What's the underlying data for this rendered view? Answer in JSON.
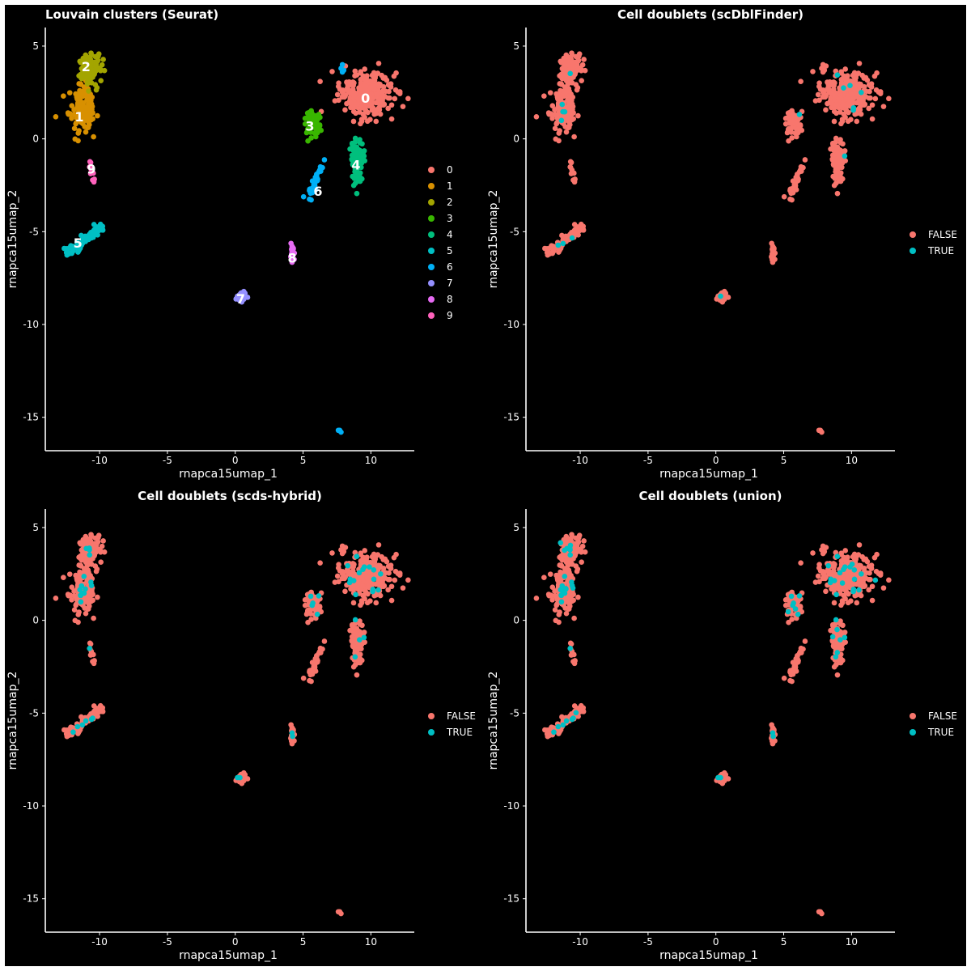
{
  "colors": {
    "background": "#000000",
    "foreground": "#ffffff",
    "cluster_palette": [
      "#F8766D",
      "#D89000",
      "#A3A500",
      "#39B600",
      "#00BF7D",
      "#00BFC4",
      "#00B0F6",
      "#9590FF",
      "#E76BF3",
      "#FF62BC"
    ],
    "false": "#F8766D",
    "true": "#00BFC4"
  },
  "chart_data": [
    {
      "type": "scatter",
      "title": "Louvain clusters (Seurat)",
      "xlabel": "rnapca15umap_1",
      "ylabel": "rnapca15umap_2",
      "xlim": [
        -14,
        13.2
      ],
      "ylim": [
        -16.8,
        6.0
      ],
      "xticks": [
        -10,
        -5,
        0,
        5,
        10
      ],
      "yticks": [
        5,
        0,
        -5,
        -10,
        -15
      ],
      "grid": false,
      "legend_position": "right",
      "legend": [
        "0",
        "1",
        "2",
        "3",
        "4",
        "5",
        "6",
        "7",
        "8",
        "9"
      ],
      "color_by": "cluster",
      "cluster_labels": [
        {
          "text": "0",
          "x": 9.6,
          "y": 2.2
        },
        {
          "text": "1",
          "x": -11.5,
          "y": 1.2
        },
        {
          "text": "2",
          "x": -11.0,
          "y": 3.9
        },
        {
          "text": "3",
          "x": 5.5,
          "y": 0.7
        },
        {
          "text": "4",
          "x": 8.9,
          "y": -1.4
        },
        {
          "text": "5",
          "x": -11.6,
          "y": -5.6
        },
        {
          "text": "6",
          "x": 6.1,
          "y": -2.8
        },
        {
          "text": "7",
          "x": 0.4,
          "y": -8.6
        },
        {
          "text": "8",
          "x": 4.2,
          "y": -6.4
        },
        {
          "text": "9",
          "x": -10.6,
          "y": -1.6
        }
      ]
    },
    {
      "type": "scatter",
      "title": "Cell doublets (scDblFinder)",
      "xlabel": "rnapca15umap_1",
      "ylabel": "rnapca15umap_2",
      "xlim": [
        -14,
        13.2
      ],
      "ylim": [
        -16.8,
        6.0
      ],
      "xticks": [
        -10,
        -5,
        0,
        5,
        10
      ],
      "yticks": [
        5,
        0,
        -5,
        -10,
        -15
      ],
      "grid": false,
      "legend_position": "right",
      "legend": [
        "FALSE",
        "TRUE"
      ],
      "color_by": "doublet",
      "doublet_fraction": 0.02
    },
    {
      "type": "scatter",
      "title": "Cell doublets (scds-hybrid)",
      "xlabel": "rnapca15umap_1",
      "ylabel": "rnapca15umap_2",
      "xlim": [
        -14,
        13.2
      ],
      "ylim": [
        -16.8,
        6.0
      ],
      "xticks": [
        -10,
        -5,
        0,
        5,
        10
      ],
      "yticks": [
        5,
        0,
        -5,
        -10,
        -15
      ],
      "grid": false,
      "legend_position": "right",
      "legend": [
        "FALSE",
        "TRUE"
      ],
      "color_by": "doublet",
      "doublet_fraction": 0.05
    },
    {
      "type": "scatter",
      "title": "Cell doublets (union)",
      "xlabel": "rnapca15umap_1",
      "ylabel": "rnapca15umap_2",
      "xlim": [
        -14,
        13.2
      ],
      "ylim": [
        -16.8,
        6.0
      ],
      "xticks": [
        -10,
        -5,
        0,
        5,
        10
      ],
      "yticks": [
        5,
        0,
        -5,
        -10,
        -15
      ],
      "grid": false,
      "legend_position": "right",
      "legend": [
        "FALSE",
        "TRUE"
      ],
      "color_by": "doublet",
      "doublet_fraction": 0.06
    }
  ],
  "clusters": [
    {
      "id": "0",
      "shape": "blob",
      "center": [
        9.6,
        2.4
      ],
      "spread": [
        1.6,
        1.0
      ],
      "n": 300
    },
    {
      "id": "1",
      "shape": "blob",
      "center": [
        -11.3,
        1.7
      ],
      "spread": [
        0.8,
        1.0
      ],
      "n": 150
    },
    {
      "id": "2",
      "shape": "blob",
      "center": [
        -10.8,
        3.8
      ],
      "spread": [
        0.7,
        0.7
      ],
      "n": 120
    },
    {
      "id": "3",
      "shape": "blob",
      "center": [
        5.7,
        0.9
      ],
      "spread": [
        0.5,
        0.5
      ],
      "n": 80
    },
    {
      "id": "4",
      "shape": "blob",
      "center": [
        9.0,
        -1.2
      ],
      "spread": [
        0.4,
        0.9
      ],
      "n": 100
    },
    {
      "id": "5",
      "shape": "line",
      "from": [
        -12.4,
        -6.2
      ],
      "to": [
        -9.8,
        -4.7
      ],
      "n": 90
    },
    {
      "id": "6",
      "shape": "line",
      "from": [
        5.4,
        -3.3
      ],
      "to": [
        6.5,
        -1.2
      ],
      "n": 30,
      "extra": [
        [
          7.9,
          4.0
        ],
        [
          7.8,
          3.8
        ],
        [
          8.0,
          3.7
        ],
        [
          7.9,
          3.6
        ],
        [
          7.7,
          -15.7
        ],
        [
          7.8,
          -15.8
        ],
        [
          7.6,
          -15.7
        ]
      ]
    },
    {
      "id": "7",
      "shape": "blob",
      "center": [
        0.5,
        -8.5
      ],
      "spread": [
        0.25,
        0.2
      ],
      "n": 40
    },
    {
      "id": "8",
      "shape": "blob",
      "center": [
        4.2,
        -6.2
      ],
      "spread": [
        0.12,
        0.35
      ],
      "n": 30
    },
    {
      "id": "9",
      "shape": "line",
      "from": [
        -10.5,
        -2.7
      ],
      "to": [
        -10.7,
        -0.8
      ],
      "n": 10
    }
  ]
}
